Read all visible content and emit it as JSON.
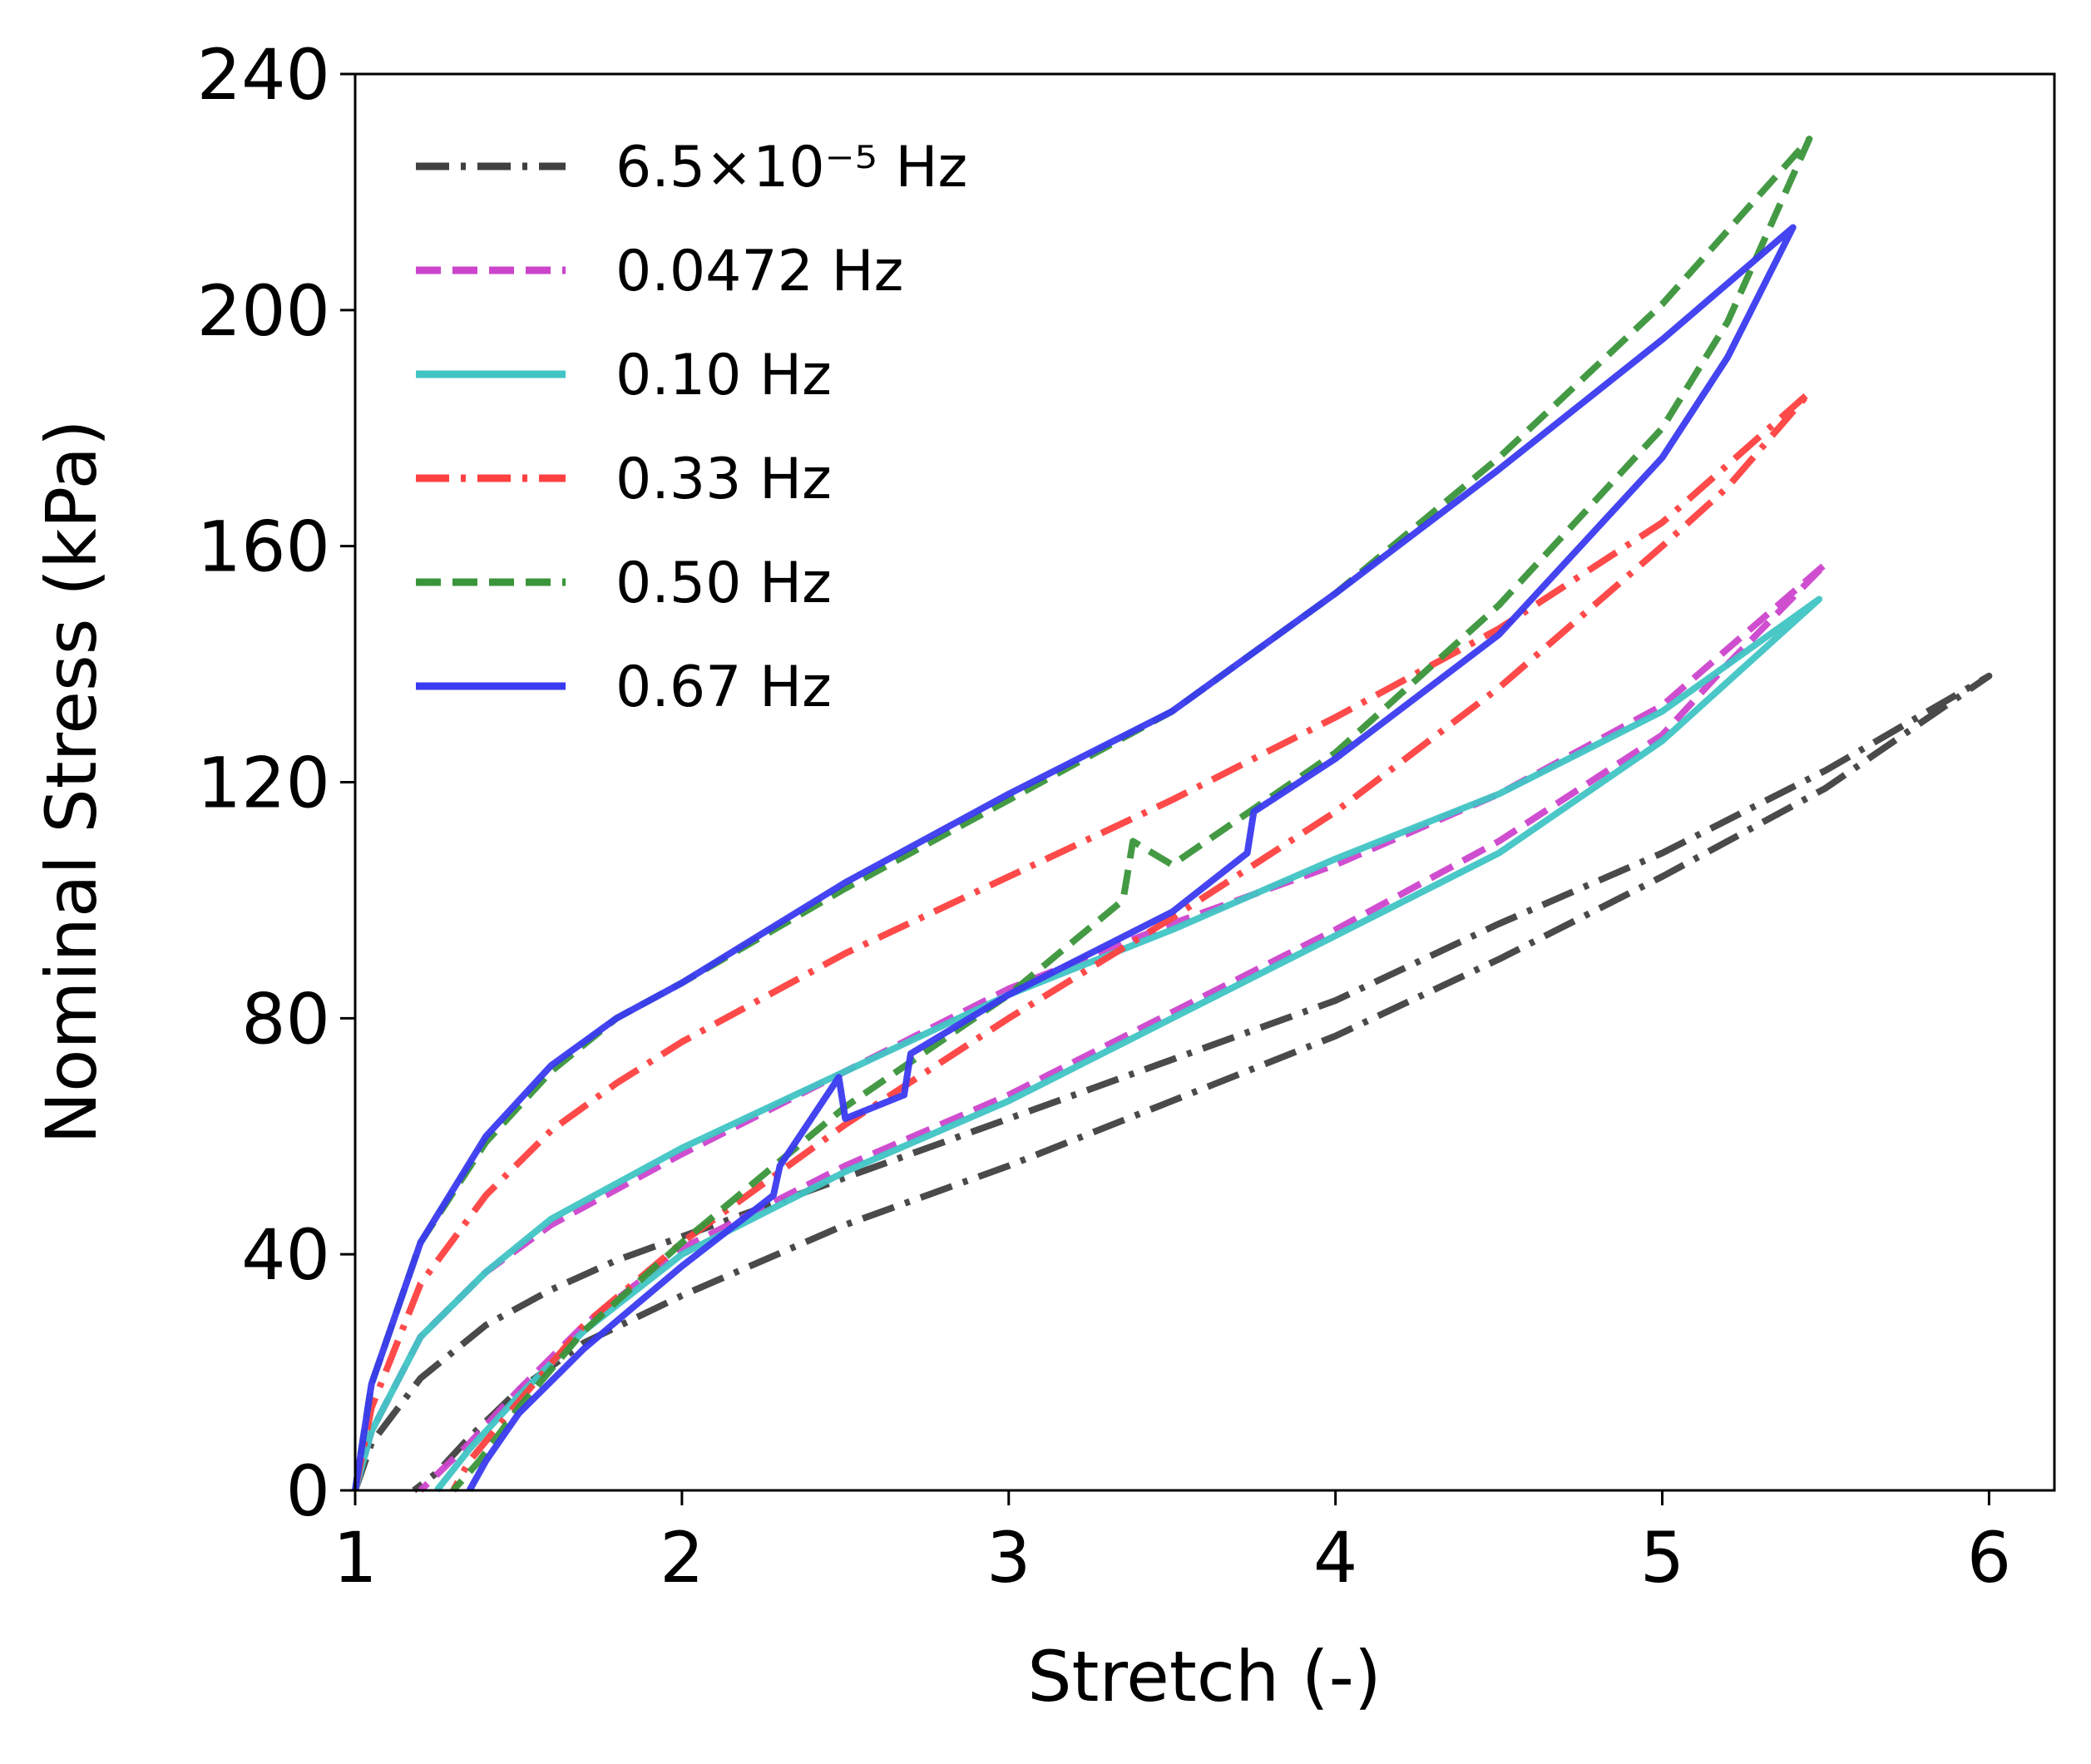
{
  "chart_data": {
    "type": "line",
    "title": "",
    "xlabel": "Stretch (-)",
    "ylabel": "Nominal Stress (kPa)",
    "xlim": [
      1,
      6.2
    ],
    "ylim": [
      0,
      240
    ],
    "xticks": [
      "1",
      "2",
      "3",
      "4",
      "5",
      "6"
    ],
    "yticks": [
      "0",
      "40",
      "80",
      "120",
      "160",
      "200",
      "240"
    ],
    "grid": false,
    "legend_position": "top-left",
    "series": [
      {
        "name": "6.5×10⁻⁵ Hz",
        "color": "#404040",
        "dash": "dash-dot",
        "loading": [
          [
            1.0,
            0
          ],
          [
            1.05,
            8
          ],
          [
            1.2,
            19
          ],
          [
            1.4,
            28
          ],
          [
            1.6,
            34
          ],
          [
            1.8,
            39
          ],
          [
            2.0,
            43
          ],
          [
            2.5,
            53
          ],
          [
            3.0,
            63
          ],
          [
            3.5,
            73
          ],
          [
            4.0,
            83
          ],
          [
            4.5,
            96
          ],
          [
            5.0,
            108
          ],
          [
            5.5,
            122
          ],
          [
            6.0,
            138
          ]
        ],
        "unloading": [
          [
            6.0,
            138
          ],
          [
            5.5,
            119
          ],
          [
            5.0,
            104
          ],
          [
            4.5,
            90
          ],
          [
            4.0,
            77
          ],
          [
            3.5,
            66
          ],
          [
            3.0,
            55
          ],
          [
            2.5,
            45
          ],
          [
            2.0,
            33
          ],
          [
            1.7,
            25
          ],
          [
            1.5,
            17
          ],
          [
            1.35,
            9
          ],
          [
            1.25,
            3
          ],
          [
            1.18,
            0
          ]
        ]
      },
      {
        "name": "0.0472 Hz",
        "color": "#cc44cc",
        "dash": "dashed",
        "loading": [
          [
            1.0,
            0
          ],
          [
            1.05,
            10
          ],
          [
            1.2,
            26
          ],
          [
            1.4,
            37
          ],
          [
            1.6,
            45
          ],
          [
            1.8,
            51
          ],
          [
            2.0,
            57
          ],
          [
            2.5,
            71
          ],
          [
            3.0,
            85
          ],
          [
            3.5,
            96
          ],
          [
            4.0,
            106
          ],
          [
            4.5,
            118
          ],
          [
            5.0,
            133
          ],
          [
            5.5,
            157
          ]
        ],
        "unloading": [
          [
            5.5,
            157
          ],
          [
            5.2,
            140
          ],
          [
            5.0,
            128
          ],
          [
            4.5,
            110
          ],
          [
            4.0,
            95
          ],
          [
            3.5,
            81
          ],
          [
            3.0,
            67
          ],
          [
            2.5,
            55
          ],
          [
            2.0,
            41
          ],
          [
            1.7,
            28
          ],
          [
            1.5,
            17
          ],
          [
            1.35,
            8
          ],
          [
            1.2,
            0
          ]
        ]
      },
      {
        "name": "0.10 Hz",
        "color": "#40c4c4",
        "dash": "solid",
        "loading": [
          [
            1.0,
            0
          ],
          [
            1.05,
            10
          ],
          [
            1.2,
            26
          ],
          [
            1.4,
            37
          ],
          [
            1.6,
            46
          ],
          [
            1.8,
            52
          ],
          [
            2.0,
            58
          ],
          [
            2.5,
            71
          ],
          [
            3.0,
            84
          ],
          [
            3.5,
            95
          ],
          [
            4.0,
            107
          ],
          [
            4.5,
            118
          ],
          [
            5.0,
            132
          ],
          [
            5.48,
            151
          ]
        ],
        "unloading": [
          [
            5.48,
            151
          ],
          [
            5.2,
            137
          ],
          [
            5.0,
            127
          ],
          [
            4.5,
            108
          ],
          [
            4.0,
            94
          ],
          [
            3.5,
            80
          ],
          [
            3.0,
            66
          ],
          [
            2.5,
            54
          ],
          [
            2.0,
            40
          ],
          [
            1.7,
            27
          ],
          [
            1.5,
            16
          ],
          [
            1.35,
            7
          ],
          [
            1.25,
            0
          ]
        ]
      },
      {
        "name": "0.33 Hz",
        "color": "#ff4040",
        "dash": "dash-dot",
        "loading": [
          [
            1.0,
            0
          ],
          [
            1.05,
            14
          ],
          [
            1.2,
            35
          ],
          [
            1.4,
            50
          ],
          [
            1.6,
            61
          ],
          [
            1.8,
            69
          ],
          [
            2.0,
            76
          ],
          [
            2.5,
            91
          ],
          [
            3.0,
            104
          ],
          [
            3.5,
            117
          ],
          [
            4.0,
            131
          ],
          [
            4.5,
            146
          ],
          [
            5.0,
            164
          ],
          [
            5.45,
            186
          ]
        ],
        "unloading": [
          [
            5.45,
            186
          ],
          [
            5.2,
            170
          ],
          [
            5.0,
            160
          ],
          [
            4.5,
            136
          ],
          [
            4.0,
            115
          ],
          [
            3.5,
            97
          ],
          [
            3.0,
            80
          ],
          [
            2.5,
            62
          ],
          [
            2.0,
            42
          ],
          [
            1.7,
            28
          ],
          [
            1.5,
            15
          ],
          [
            1.35,
            5
          ],
          [
            1.3,
            0
          ]
        ]
      },
      {
        "name": "0.50 Hz",
        "color": "#3a953a",
        "dash": "dashed",
        "loading": [
          [
            1.0,
            0
          ],
          [
            1.05,
            18
          ],
          [
            1.2,
            42
          ],
          [
            1.4,
            59
          ],
          [
            1.6,
            71
          ],
          [
            1.8,
            80
          ],
          [
            2.0,
            86
          ],
          [
            2.5,
            102
          ],
          [
            3.0,
            117
          ],
          [
            3.5,
            132
          ],
          [
            4.0,
            152
          ],
          [
            4.5,
            175
          ],
          [
            5.0,
            201
          ],
          [
            5.45,
            229
          ]
        ],
        "unloading": [
          [
            5.45,
            229
          ],
          [
            5.2,
            198
          ],
          [
            5.0,
            180
          ],
          [
            4.5,
            150
          ],
          [
            4.0,
            125
          ],
          [
            3.5,
            106
          ],
          [
            3.38,
            110
          ],
          [
            3.35,
            100
          ],
          [
            3.0,
            84
          ],
          [
            2.5,
            65
          ],
          [
            2.0,
            42
          ],
          [
            1.7,
            27
          ],
          [
            1.5,
            14
          ],
          [
            1.38,
            5
          ],
          [
            1.3,
            0
          ]
        ]
      },
      {
        "name": "0.67 Hz",
        "color": "#3a3af0",
        "dash": "solid",
        "loading": [
          [
            1.0,
            0
          ],
          [
            1.05,
            18
          ],
          [
            1.2,
            42
          ],
          [
            1.4,
            60
          ],
          [
            1.6,
            72
          ],
          [
            1.8,
            80
          ],
          [
            2.0,
            86
          ],
          [
            2.5,
            103
          ],
          [
            3.0,
            118
          ],
          [
            3.5,
            132
          ],
          [
            4.0,
            152
          ],
          [
            4.5,
            173
          ],
          [
            5.0,
            195
          ],
          [
            5.4,
            214
          ]
        ],
        "unloading": [
          [
            5.4,
            214
          ],
          [
            5.2,
            192
          ],
          [
            5.0,
            175
          ],
          [
            4.5,
            145
          ],
          [
            4.0,
            124
          ],
          [
            3.75,
            115
          ],
          [
            3.73,
            108
          ],
          [
            3.5,
            98
          ],
          [
            3.0,
            84
          ],
          [
            2.7,
            74
          ],
          [
            2.68,
            67
          ],
          [
            2.5,
            63
          ],
          [
            2.48,
            70
          ],
          [
            2.3,
            55
          ],
          [
            2.28,
            50
          ],
          [
            2.0,
            38
          ],
          [
            1.7,
            24
          ],
          [
            1.5,
            13
          ],
          [
            1.4,
            5
          ],
          [
            1.35,
            0
          ]
        ]
      }
    ]
  }
}
